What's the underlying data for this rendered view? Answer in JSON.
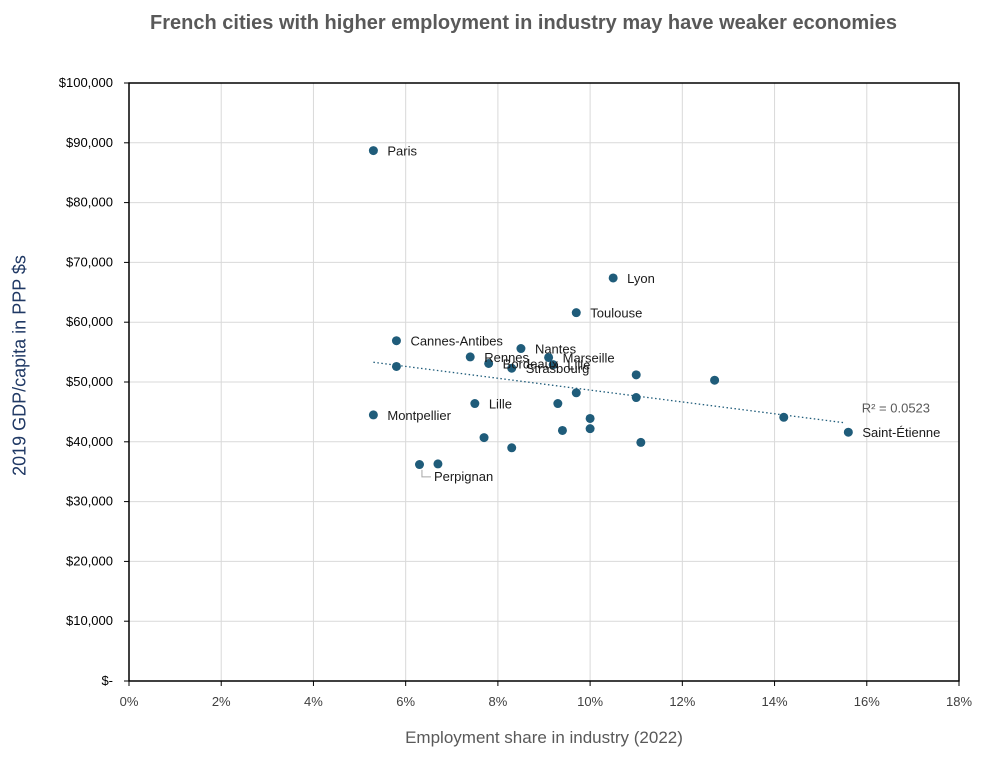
{
  "chart_data": {
    "type": "scatter",
    "title": "French cities with higher employment in industry may have weaker economies",
    "xlabel": "Employment share in industry (2022)",
    "ylabel": "2019 GDP/capita in PPP $s",
    "xlim": [
      0,
      0.18
    ],
    "ylim": [
      0,
      100000
    ],
    "x_ticks": [
      {
        "value": 0,
        "label": "0%"
      },
      {
        "value": 0.02,
        "label": "2%"
      },
      {
        "value": 0.04,
        "label": "4%"
      },
      {
        "value": 0.06,
        "label": "6%"
      },
      {
        "value": 0.08,
        "label": "8%"
      },
      {
        "value": 0.1,
        "label": "10%"
      },
      {
        "value": 0.12,
        "label": "12%"
      },
      {
        "value": 0.14,
        "label": "14%"
      },
      {
        "value": 0.16,
        "label": "16%"
      },
      {
        "value": 0.18,
        "label": "18%"
      }
    ],
    "y_ticks": [
      {
        "value": 0,
        "label": "$-"
      },
      {
        "value": 10000,
        "label": "$10,000"
      },
      {
        "value": 20000,
        "label": "$20,000"
      },
      {
        "value": 30000,
        "label": "$30,000"
      },
      {
        "value": 40000,
        "label": "$40,000"
      },
      {
        "value": 50000,
        "label": "$50,000"
      },
      {
        "value": 60000,
        "label": "$60,000"
      },
      {
        "value": 70000,
        "label": "$70,000"
      },
      {
        "value": 80000,
        "label": "$80,000"
      },
      {
        "value": 90000,
        "label": "$90,000"
      },
      {
        "value": 100000,
        "label": "$100,000"
      }
    ],
    "grid": true,
    "marker_color": "#1f5c7a",
    "trendline_color": "#1f5c7a",
    "points": [
      {
        "x": 0.053,
        "y": 88700,
        "label": "Paris"
      },
      {
        "x": 0.105,
        "y": 67400,
        "label": "Lyon"
      },
      {
        "x": 0.097,
        "y": 61600,
        "label": "Toulouse"
      },
      {
        "x": 0.058,
        "y": 56900,
        "label": "Cannes-Antibes"
      },
      {
        "x": 0.085,
        "y": 55600,
        "label": "Nantes"
      },
      {
        "x": 0.074,
        "y": 54200,
        "label": "Rennes"
      },
      {
        "x": 0.091,
        "y": 54100,
        "label": "Marseille"
      },
      {
        "x": 0.078,
        "y": 53100,
        "label": "Bordeaux"
      },
      {
        "x": 0.092,
        "y": 52900,
        "label": "Lille"
      },
      {
        "x": 0.058,
        "y": 52600
      },
      {
        "x": 0.083,
        "y": 52300,
        "label": "Strasbourg"
      },
      {
        "x": 0.11,
        "y": 51200
      },
      {
        "x": 0.127,
        "y": 50300
      },
      {
        "x": 0.097,
        "y": 48200
      },
      {
        "x": 0.11,
        "y": 47400
      },
      {
        "x": 0.075,
        "y": 46400,
        "label": "Lille"
      },
      {
        "x": 0.093,
        "y": 46400
      },
      {
        "x": 0.053,
        "y": 44500,
        "label": "Montpellier"
      },
      {
        "x": 0.142,
        "y": 44100
      },
      {
        "x": 0.1,
        "y": 43900
      },
      {
        "x": 0.1,
        "y": 42200
      },
      {
        "x": 0.094,
        "y": 41900
      },
      {
        "x": 0.156,
        "y": 41600,
        "label": "Saint-Étienne"
      },
      {
        "x": 0.077,
        "y": 40700
      },
      {
        "x": 0.111,
        "y": 39900
      },
      {
        "x": 0.083,
        "y": 39000
      },
      {
        "x": 0.063,
        "y": 36200
      },
      {
        "x": 0.067,
        "y": 36300,
        "label": "Perpignan"
      }
    ],
    "trendline": {
      "x": [
        0.053,
        0.155
      ],
      "y": [
        53300,
        43200
      ],
      "r2_label": "R² = 0.0523"
    }
  }
}
